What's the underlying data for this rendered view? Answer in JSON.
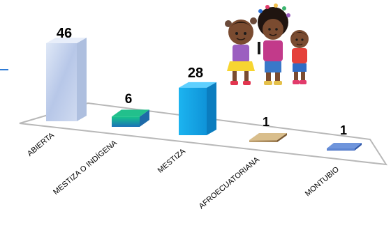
{
  "chart_data": {
    "type": "bar",
    "style": "3d-column-perspective",
    "title": "",
    "xlabel": "",
    "ylabel": "",
    "categories": [
      "ABIERTA",
      "MESTIZA O INDÍGENA",
      "MESTIZA",
      "AFROECUATORIANA",
      "MONTUBIO"
    ],
    "values": [
      46,
      6,
      28,
      1,
      1
    ],
    "value_labels": [
      "46",
      "6",
      "28",
      "1",
      "1"
    ],
    "ylim": [
      0,
      46
    ],
    "grid": false,
    "legend": "none",
    "colors": [
      "#c9d6ee",
      "#1fa28f",
      "#17aae8",
      "#b9996a",
      "#3f6bc4"
    ]
  },
  "illustration": {
    "icon": "children-cartoon-illustration"
  }
}
